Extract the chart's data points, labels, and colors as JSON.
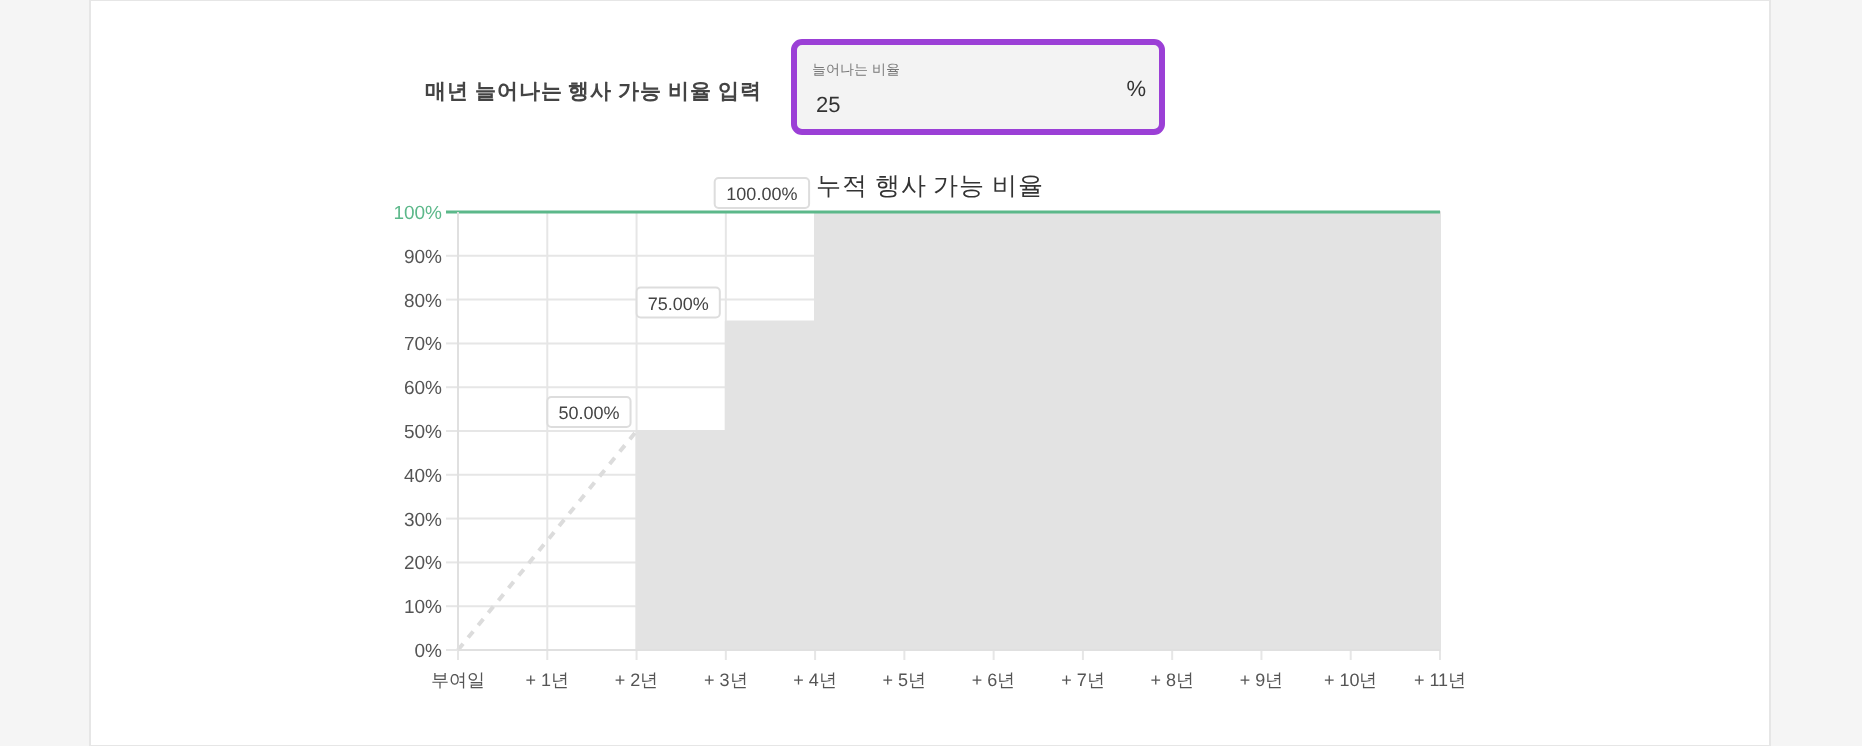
{
  "chart_data": {
    "type": "step",
    "title": "누적 행사 가능 비율",
    "annotations": [
      "매년 늘어나는 행사 가능 비율 입력",
      "늘어나는 비율",
      "25",
      "%"
    ],
    "categories": [
      "부여일",
      "+ 1년",
      "+ 2년",
      "+ 3년",
      "+ 4년",
      "+ 5년",
      "+ 6년",
      "+ 7년",
      "+ 8년",
      "+ 9년",
      "+ 10년",
      "+ 11년"
    ],
    "series": [
      {
        "type": "area",
        "color": "#e3e3e3",
        "values": [
          null,
          null,
          50,
          75,
          100,
          100,
          100,
          100,
          100,
          100,
          100,
          100
        ],
        "value_labels": [
          null,
          null,
          "50.00%",
          "75.00%",
          "100.00%",
          null,
          null,
          null,
          null,
          null,
          null,
          null
        ]
      },
      {
        "type": "line",
        "color": "#dcdcdc",
        "line_style": "dashed",
        "values": [
          0,
          25,
          50,
          null,
          null,
          null,
          null,
          null,
          null,
          null,
          null,
          null
        ]
      }
    ],
    "ylim": [
      0,
      100
    ],
    "yticks": [
      {
        "value": 0,
        "label": "0%"
      },
      {
        "value": 10,
        "label": "10%"
      },
      {
        "value": 20,
        "label": "20%"
      },
      {
        "value": 30,
        "label": "30%"
      },
      {
        "value": 40,
        "label": "40%"
      },
      {
        "value": 50,
        "label": "50%"
      },
      {
        "value": 60,
        "label": "60%"
      },
      {
        "value": 70,
        "label": "70%"
      },
      {
        "value": 80,
        "label": "80%"
      },
      {
        "value": 90,
        "label": "90%"
      },
      {
        "value": 100,
        "label": "100%"
      }
    ],
    "grid": true,
    "ref_lines": [
      {
        "axis": "y",
        "value": 100,
        "color": "#5cb88a"
      }
    ]
  }
}
